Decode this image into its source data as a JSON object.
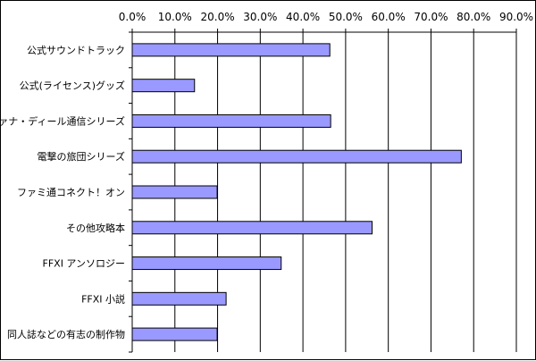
{
  "chart_data": {
    "type": "bar",
    "orientation": "horizontal",
    "title": "",
    "xlabel": "",
    "ylabel": "",
    "xlim": [
      0,
      90
    ],
    "x_ticks": [
      0,
      10,
      20,
      30,
      40,
      50,
      60,
      70,
      80,
      90
    ],
    "x_tick_labels": [
      "0.0%",
      "10.0%",
      "20.0%",
      "30.0%",
      "40.0%",
      "50.0%",
      "60.0%",
      "70.0%",
      "80.0%",
      "90.0%"
    ],
    "x_axis_position": "top",
    "grid": "vertical major gridlines",
    "legend": "none",
    "categories": [
      "公式サウンドトラック",
      "公式(ライセンス)グッズ",
      "ヴァナ・ディール通信シリーズ",
      "電撃の旅団シリーズ",
      "ファミ通コネクト！オン",
      "その他攻略本",
      "FFXI アンソロジー",
      "FFXI 小説",
      "同人誌などの有志の制作物"
    ],
    "values": [
      46.3,
      14.6,
      46.5,
      77.1,
      19.9,
      56.2,
      34.9,
      22.0,
      19.9
    ],
    "colors": {
      "bar_fill": "#9999ff",
      "bar_stroke": "#000000",
      "gridline": "#000000",
      "background": "#ffffff"
    }
  }
}
